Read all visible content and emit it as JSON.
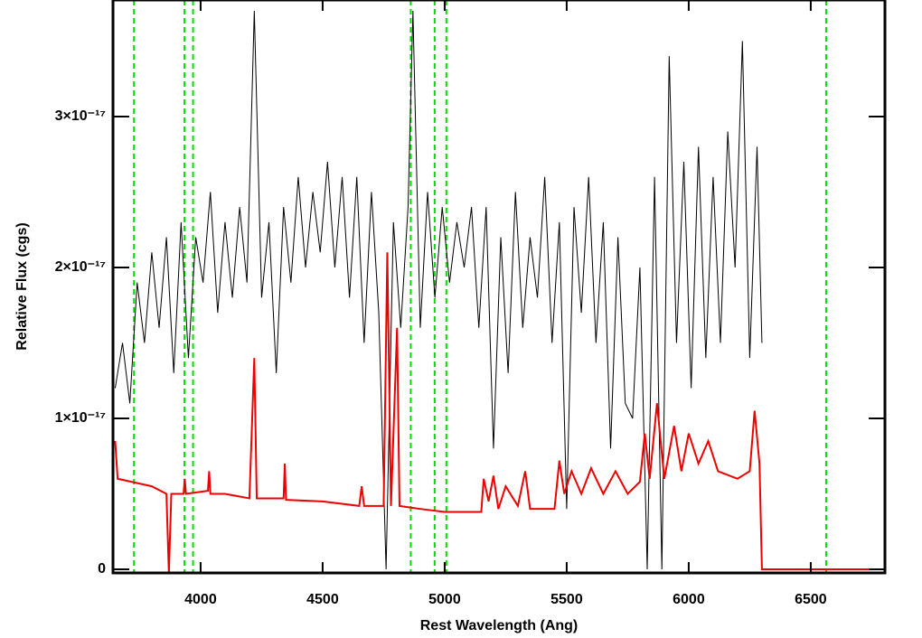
{
  "chart_data": {
    "type": "line",
    "xlabel": "Rest Wavelength (Ang)",
    "ylabel": "Relative Flux (cgs)",
    "xlim": [
      3641,
      6804
    ],
    "ylim": [
      -2.4e-19,
      3.772e-17
    ],
    "xticks": [
      4000,
      4500,
      5000,
      5500,
      6000,
      6500
    ],
    "yticks": [
      0,
      {
        "value": 1e-17,
        "label": "1×10⁻¹⁷"
      },
      {
        "value": 2e-17,
        "label": "2×10⁻¹⁷"
      },
      {
        "value": 3e-17,
        "label": "3×10⁻¹⁷"
      }
    ],
    "vlines": {
      "color": "#00dd00",
      "x": [
        3727,
        3934,
        3969,
        4861,
        4959,
        5007,
        6563
      ]
    },
    "series": [
      {
        "color": "#000000",
        "x": [
          3650,
          3680,
          3710,
          3740,
          3770,
          3800,
          3830,
          3860,
          3890,
          3920,
          3950,
          3980,
          4010,
          4040,
          4070,
          4100,
          4130,
          4160,
          4190,
          4220,
          4250,
          4280,
          4310,
          4340,
          4370,
          4400,
          4430,
          4460,
          4490,
          4520,
          4550,
          4580,
          4610,
          4640,
          4670,
          4700,
          4730,
          4760,
          4790,
          4820,
          4850,
          4870,
          4900,
          4930,
          4960,
          4990,
          5020,
          5050,
          5080,
          5110,
          5140,
          5170,
          5200,
          5230,
          5260,
          5290,
          5320,
          5350,
          5380,
          5410,
          5440,
          5470,
          5500,
          5530,
          5560,
          5590,
          5620,
          5650,
          5680,
          5710,
          5740,
          5770,
          5800,
          5830,
          5860,
          5890,
          5920,
          5950,
          5980,
          6010,
          6040,
          6070,
          6100,
          6130,
          6160,
          6190,
          6220,
          6250,
          6280,
          6300
        ],
        "values": [
          1.2e-17,
          1.5e-17,
          1.1e-17,
          1.9e-17,
          1.5e-17,
          2.1e-17,
          1.6e-17,
          2.2e-17,
          1.3e-17,
          2.3e-17,
          1.4e-17,
          2.2e-17,
          1.9e-17,
          2.5e-17,
          1.7e-17,
          2.3e-17,
          1.8e-17,
          2.4e-17,
          1.9e-17,
          3.7e-17,
          1.8e-17,
          2.3e-17,
          1.3e-17,
          2.4e-17,
          1.9e-17,
          2.6e-17,
          2e-17,
          2.5e-17,
          2.1e-17,
          2.7e-17,
          2e-17,
          2.6e-17,
          1.8e-17,
          2.6e-17,
          1.5e-17,
          2.5e-17,
          1.7e-17,
          0,
          2.3e-17,
          1.6e-17,
          2.4e-17,
          3.7e-17,
          1.6e-17,
          2.5e-17,
          1.8e-17,
          2.4e-17,
          1.9e-17,
          2.3e-17,
          2e-17,
          2.4e-17,
          1.6e-17,
          2.4e-17,
          8e-18,
          2.2e-17,
          1.3e-17,
          2.5e-17,
          1.6e-17,
          2.2e-17,
          1.8e-17,
          2.6e-17,
          1.5e-17,
          2.3e-17,
          4e-18,
          2.4e-17,
          1.7e-17,
          2.6e-17,
          1.5e-17,
          2.3e-17,
          8e-18,
          2.2e-17,
          1.1e-17,
          1e-17,
          2e-17,
          0,
          2.6e-17,
          0,
          3.4e-17,
          1.5e-17,
          2.7e-17,
          1.2e-17,
          2.8e-17,
          1.4e-17,
          2.6e-17,
          1.5e-17,
          2.9e-17,
          2e-17,
          3.5e-17,
          1.4e-17,
          2.8e-17,
          1.5e-17
        ]
      },
      {
        "color": "#ee0000",
        "x": [
          3650,
          3660,
          3800,
          3860,
          3870,
          3880,
          3930,
          3935,
          3940,
          4030,
          4035,
          4040,
          4100,
          4200,
          4220,
          4230,
          4340,
          4345,
          4350,
          4500,
          4650,
          4660,
          4670,
          4750,
          4765,
          4780,
          4805,
          4815,
          4900,
          5000,
          5150,
          5160,
          5180,
          5200,
          5220,
          5250,
          5300,
          5330,
          5350,
          5450,
          5470,
          5490,
          5520,
          5560,
          5600,
          5650,
          5700,
          5750,
          5800,
          5820,
          5840,
          5870,
          5900,
          5940,
          5970,
          6000,
          6040,
          6080,
          6120,
          6200,
          6250,
          6270,
          6290,
          6300,
          6804
        ],
        "values": [
          8.5e-18,
          6e-18,
          5.5e-18,
          5e-18,
          -2.4e-19,
          5e-18,
          5e-18,
          6e-18,
          5e-18,
          5.2e-18,
          6.5e-18,
          5e-18,
          5e-18,
          4.7e-18,
          1.4e-17,
          4.7e-18,
          4.7e-18,
          7e-18,
          4.6e-18,
          4.5e-18,
          4.2e-18,
          5.5e-18,
          4.2e-18,
          4.2e-18,
          2.1e-17,
          4.2e-18,
          1.6e-17,
          4.2e-18,
          4e-18,
          3.8e-18,
          3.8e-18,
          6e-18,
          4.5e-18,
          6.2e-18,
          4e-18,
          5.5e-18,
          4.2e-18,
          6.5e-18,
          4e-18,
          4e-18,
          7.2e-18,
          5e-18,
          6.5e-18,
          5e-18,
          6.7e-18,
          5e-18,
          6.5e-18,
          5e-18,
          5.8e-18,
          9e-18,
          6e-18,
          1.1e-17,
          6e-18,
          9.5e-18,
          6.5e-18,
          9e-18,
          7e-18,
          8.5e-18,
          6.5e-18,
          6e-18,
          6.5e-18,
          1.05e-17,
          7e-18,
          0,
          0
        ]
      }
    ]
  }
}
